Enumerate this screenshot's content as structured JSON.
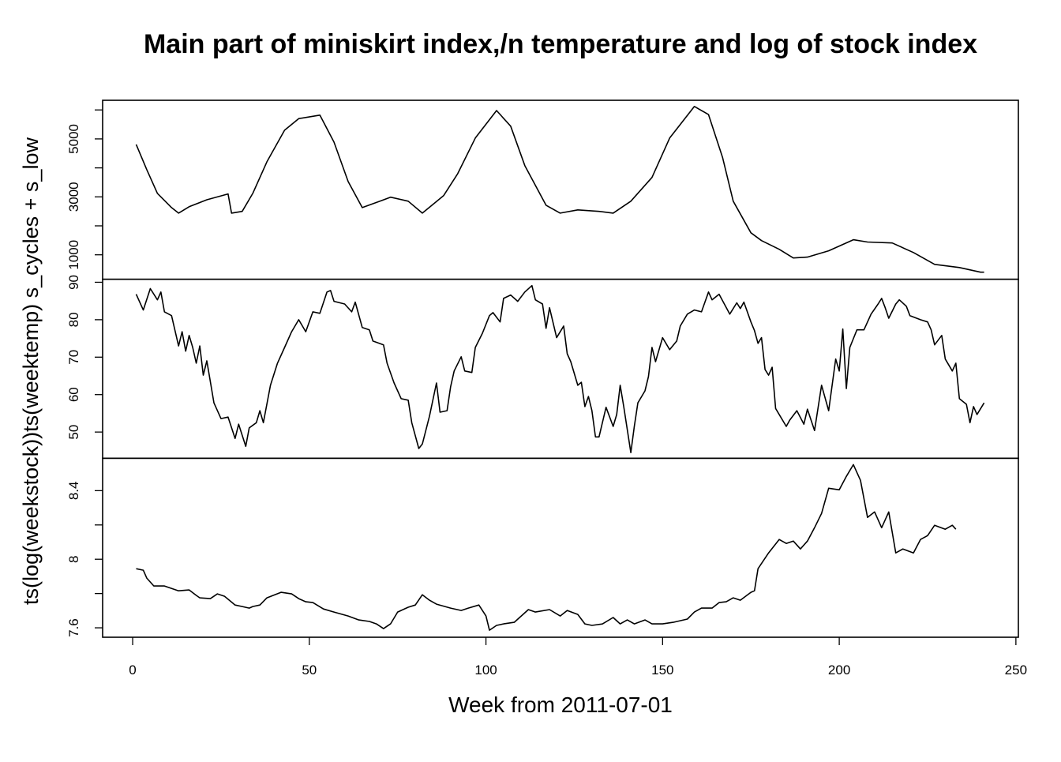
{
  "chart_data": {
    "type": "line",
    "title": "Main part of miniskirt index,/n temperature and log of stock index",
    "xlabel": "Week from 2011-07-01",
    "ylabel": "ts(log(weekstock))ts(weektemp) s_cycles + s_low",
    "color": "#000000",
    "xlim": [
      -8.5,
      250.7
    ],
    "xticks": [
      0,
      50,
      100,
      150,
      200,
      250
    ],
    "panels": [
      {
        "ylim": [
          156,
          6333
        ],
        "yticks": [
          1000,
          3000,
          5000
        ],
        "minor_yticks": [
          2000,
          4000,
          6000
        ],
        "x": [
          1,
          4,
          7,
          11,
          13,
          16,
          21,
          27,
          28,
          31,
          34,
          38,
          43,
          47,
          53,
          57,
          61,
          65,
          70,
          73,
          78,
          82,
          88,
          92,
          97,
          103,
          107,
          111,
          117,
          121,
          126,
          132,
          136,
          141,
          147,
          152,
          159,
          163,
          167,
          170,
          175,
          178,
          183,
          187,
          191,
          197,
          204,
          208,
          215,
          221,
          227,
          234,
          240,
          241
        ],
        "values": [
          4810,
          3940,
          3120,
          2630,
          2440,
          2660,
          2900,
          3100,
          2440,
          2500,
          3120,
          4210,
          5300,
          5700,
          5820,
          4890,
          3530,
          2630,
          2850,
          2990,
          2850,
          2440,
          3040,
          3800,
          5030,
          5980,
          5440,
          4080,
          2710,
          2440,
          2550,
          2500,
          2440,
          2850,
          3670,
          5030,
          6120,
          5840,
          4350,
          2850,
          1760,
          1490,
          1190,
          890,
          920,
          1140,
          1520,
          1440,
          1410,
          1080,
          670,
          560,
          400,
          400
        ]
      },
      {
        "ylim": [
          43.0,
          90.8
        ],
        "yticks": [
          50,
          60,
          70,
          80,
          90
        ],
        "minor_yticks": [],
        "x": [
          1,
          3,
          5,
          7,
          8,
          9,
          11,
          13,
          14,
          15,
          16,
          17,
          18,
          19,
          20,
          21,
          23,
          25,
          27,
          29,
          30,
          32,
          33,
          35,
          36,
          37,
          39,
          41,
          43,
          45,
          47,
          49,
          51,
          53,
          55,
          56,
          57,
          60,
          62,
          63,
          65,
          67,
          68,
          71,
          72,
          74,
          76,
          78,
          79,
          81,
          82,
          84,
          86,
          87,
          89,
          90,
          91,
          93,
          94,
          96,
          97,
          99,
          101,
          102,
          104,
          105,
          107,
          109,
          111,
          113,
          114,
          116,
          117,
          118,
          120,
          122,
          123,
          124,
          126,
          127,
          128,
          129,
          130,
          131,
          132,
          134,
          136,
          137,
          138,
          139,
          141,
          142,
          143,
          145,
          146,
          147,
          148,
          150,
          152,
          154,
          155,
          157,
          159,
          161,
          163,
          164,
          166,
          169,
          171,
          172,
          173,
          175,
          176,
          177,
          178,
          179,
          180,
          181,
          182,
          185,
          186,
          188,
          190,
          191,
          193,
          195,
          197,
          199,
          200,
          201,
          202,
          203,
          205,
          207,
          209,
          211,
          212,
          213,
          214,
          216,
          217,
          219,
          220,
          223,
          225,
          226,
          227,
          229,
          230,
          232,
          233,
          234,
          236,
          237,
          238,
          239,
          241
        ],
        "values": [
          86.8,
          82.6,
          88.3,
          85.3,
          87.4,
          82.1,
          81.1,
          73.0,
          76.8,
          71.6,
          75.8,
          72.6,
          68.4,
          73.0,
          65.2,
          69.0,
          57.8,
          53.6,
          54.0,
          48.3,
          52.1,
          46.2,
          51.1,
          52.5,
          55.7,
          52.5,
          62.5,
          68.4,
          72.6,
          76.8,
          80.0,
          76.8,
          82.1,
          81.7,
          87.4,
          87.8,
          84.9,
          84.2,
          82.1,
          84.7,
          77.9,
          77.3,
          74.3,
          73.3,
          68.4,
          63.1,
          58.9,
          58.5,
          52.5,
          45.6,
          46.8,
          54.2,
          63.1,
          55.3,
          55.7,
          62.1,
          66.3,
          70.1,
          66.3,
          65.9,
          72.6,
          76.4,
          81.1,
          81.9,
          79.4,
          85.7,
          86.6,
          84.9,
          87.4,
          89.1,
          85.3,
          84.2,
          77.7,
          83.2,
          75.2,
          78.3,
          70.9,
          68.8,
          62.5,
          63.3,
          56.8,
          59.5,
          55.7,
          48.7,
          48.7,
          56.6,
          51.5,
          54.7,
          62.5,
          56.8,
          44.5,
          51.5,
          57.8,
          61.0,
          64.8,
          72.6,
          68.8,
          75.2,
          72.0,
          74.3,
          78.3,
          81.5,
          82.6,
          82.1,
          87.4,
          85.3,
          86.8,
          81.5,
          84.5,
          83.0,
          84.7,
          79.4,
          77.1,
          73.7,
          75.2,
          66.7,
          65.2,
          67.3,
          56.3,
          51.5,
          53.2,
          55.7,
          52.1,
          56.1,
          50.4,
          62.5,
          55.7,
          69.5,
          66.3,
          77.5,
          61.6,
          72.6,
          77.3,
          77.3,
          81.5,
          84.2,
          85.7,
          83.2,
          80.4,
          84.2,
          85.3,
          83.6,
          81.1,
          80.0,
          79.4,
          77.3,
          73.3,
          75.8,
          69.5,
          66.3,
          68.4,
          58.9,
          57.4,
          52.5,
          56.8,
          54.7,
          57.8
        ]
      },
      {
        "ylim": [
          7.545,
          8.589
        ],
        "yticks": [
          7.6,
          8.0,
          8.4
        ],
        "minor_yticks": [
          7.8,
          8.2
        ],
        "x": [
          1,
          3,
          4,
          6,
          9,
          13,
          16,
          18,
          19,
          22,
          24,
          26,
          29,
          31,
          33,
          34,
          36,
          38,
          42,
          45,
          47,
          49,
          51,
          54,
          57,
          61,
          64,
          67,
          69,
          71,
          73,
          75,
          78,
          80,
          82,
          84,
          86,
          90,
          93,
          95,
          98,
          100,
          101,
          103,
          105,
          108,
          110,
          112,
          114,
          118,
          121,
          123,
          126,
          128,
          130,
          133,
          136,
          138,
          140,
          142,
          145,
          147,
          150,
          153,
          157,
          159,
          161,
          164,
          166,
          168,
          170,
          172,
          175,
          176,
          177,
          180,
          183,
          185,
          187,
          189,
          191,
          193,
          195,
          197,
          200,
          202,
          204,
          206,
          208,
          210,
          212,
          214,
          216,
          218,
          221,
          223,
          225,
          227,
          230,
          232,
          233
        ],
        "values": [
          7.945,
          7.936,
          7.89,
          7.844,
          7.844,
          7.816,
          7.821,
          7.789,
          7.775,
          7.77,
          7.798,
          7.784,
          7.733,
          7.724,
          7.715,
          7.724,
          7.733,
          7.775,
          7.807,
          7.798,
          7.77,
          7.752,
          7.747,
          7.71,
          7.692,
          7.669,
          7.646,
          7.637,
          7.623,
          7.595,
          7.623,
          7.692,
          7.72,
          7.733,
          7.793,
          7.761,
          7.738,
          7.715,
          7.701,
          7.715,
          7.733,
          7.669,
          7.586,
          7.614,
          7.623,
          7.632,
          7.669,
          7.706,
          7.692,
          7.706,
          7.669,
          7.701,
          7.678,
          7.623,
          7.614,
          7.623,
          7.66,
          7.623,
          7.646,
          7.623,
          7.646,
          7.623,
          7.623,
          7.632,
          7.651,
          7.692,
          7.715,
          7.715,
          7.747,
          7.752,
          7.775,
          7.761,
          7.807,
          7.816,
          7.945,
          8.037,
          8.115,
          8.092,
          8.106,
          8.06,
          8.106,
          8.184,
          8.267,
          8.414,
          8.405,
          8.483,
          8.552,
          8.46,
          8.244,
          8.276,
          8.184,
          8.276,
          8.037,
          8.06,
          8.037,
          8.115,
          8.138,
          8.198,
          8.175,
          8.198,
          8.175
        ]
      }
    ]
  }
}
